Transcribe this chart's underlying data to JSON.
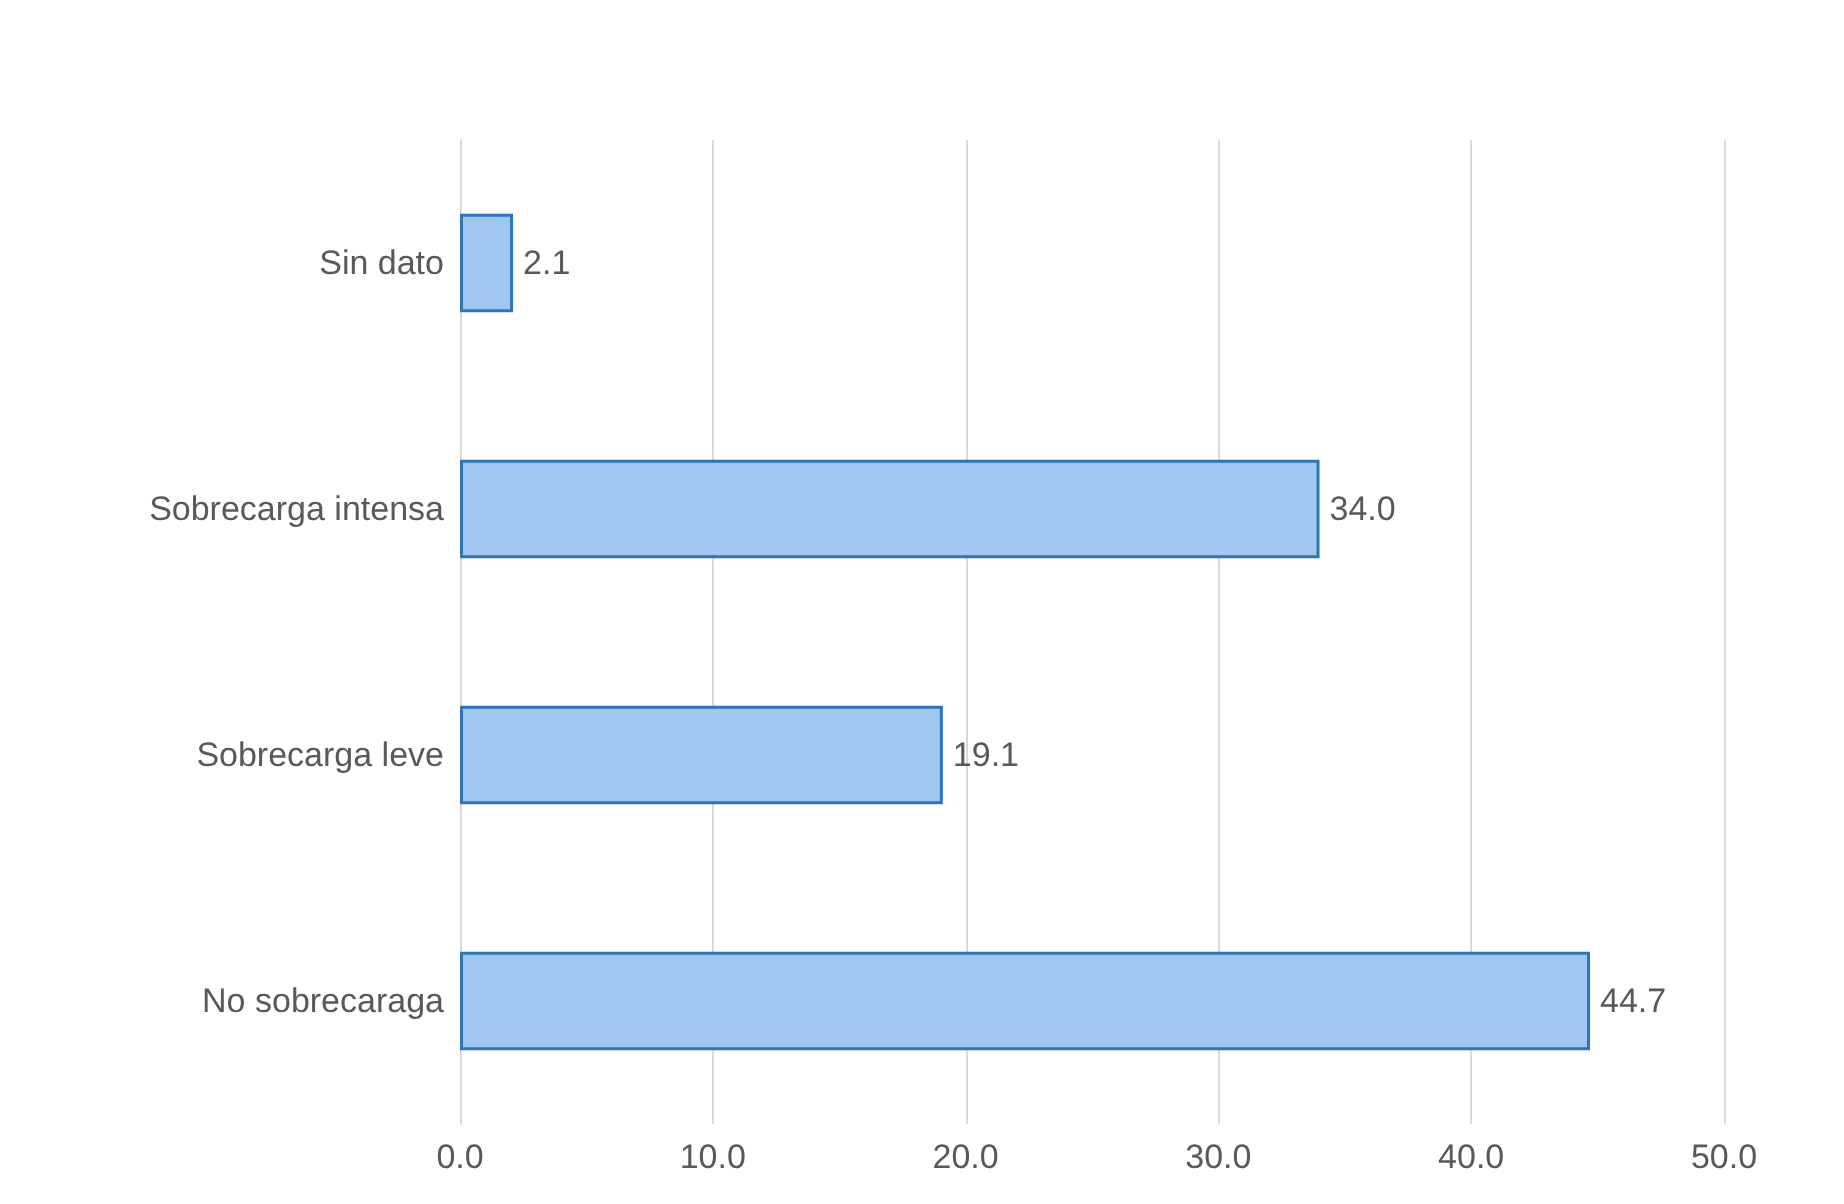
{
  "chart_data": {
    "type": "bar",
    "orientation": "horizontal",
    "categories": [
      "Sin dato",
      "Sobrecarga intensa",
      "Sobrecarga leve",
      "No sobrecaraga"
    ],
    "values": [
      2.1,
      34.0,
      19.1,
      44.7
    ],
    "value_labels": [
      "2.1",
      "34.0",
      "19.1",
      "44.7"
    ],
    "color": "#9fc7f0",
    "xlim": [
      0,
      50
    ],
    "xticks": [
      {
        "value": 0,
        "label": "0.0"
      },
      {
        "value": 10,
        "label": "10.0"
      },
      {
        "value": 20,
        "label": "20.0"
      },
      {
        "value": 30,
        "label": "30.0"
      },
      {
        "value": 40,
        "label": "40.0"
      },
      {
        "value": 50,
        "label": "50.0"
      }
    ],
    "grid": "x"
  }
}
